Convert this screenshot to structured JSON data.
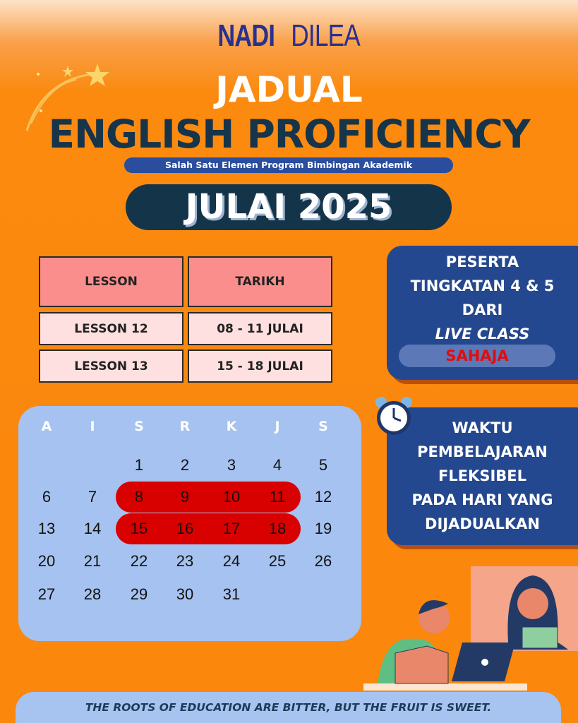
{
  "logo": {
    "part1": "NADI",
    "part2": "DILEA"
  },
  "header": {
    "title": "JADUAL",
    "program": "ENGLISH PROFICIENCY",
    "subtitle": "Salah Satu Elemen Program Bimbingan Akademik",
    "month": "JULAI 2025"
  },
  "schedule": {
    "headers": [
      "LESSON",
      "TARIKH"
    ],
    "rows": [
      [
        "LESSON 12",
        "08 - 11 JULAI"
      ],
      [
        "LESSON 13",
        "15 - 18 JULAI"
      ]
    ]
  },
  "participants": {
    "lines": [
      "PESERTA",
      "TINGKATAN 4 & 5",
      "DARI"
    ],
    "live": "LIVE CLASS",
    "only": "SAHAJA"
  },
  "flexible": {
    "lines": [
      "WAKTU",
      "PEMBELAJARAN",
      "FLEKSIBEL",
      "PADA HARI YANG",
      "DIJADUALKAN"
    ]
  },
  "calendar": {
    "weekdays": [
      "A",
      "I",
      "S",
      "R",
      "K",
      "J",
      "S"
    ],
    "weeks": [
      [
        "",
        "",
        "1",
        "2",
        "3",
        "4",
        "5"
      ],
      [
        "6",
        "7",
        "8",
        "9",
        "10",
        "11",
        "12"
      ],
      [
        "13",
        "14",
        "15",
        "16",
        "17",
        "18",
        "19"
      ],
      [
        "20",
        "21",
        "22",
        "23",
        "24",
        "25",
        "26"
      ],
      [
        "27",
        "28",
        "29",
        "30",
        "31",
        "",
        ""
      ]
    ],
    "highlighted_days": [
      8,
      9,
      10,
      11,
      15,
      16,
      17,
      18
    ],
    "highlight_color": "#d90000"
  },
  "quote": "THE ROOTS OF EDUCATION ARE BITTER, BUT THE FRUIT IS SWEET.",
  "colors": {
    "background": "#fb870c",
    "navy": "#14344a",
    "blue_box": "#24488f",
    "calendar_bg": "#a5c2f0"
  }
}
